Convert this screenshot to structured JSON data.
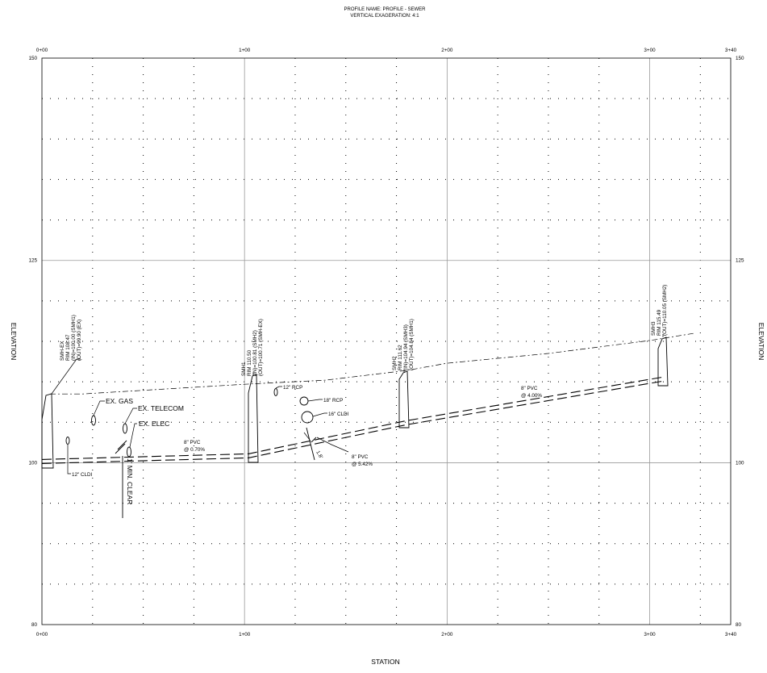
{
  "header": {
    "profile_name": "PROFILE NAME: PROFILE - SEWER",
    "vertical_exaggeration": "VERTICAL EXAGERATION: 4:1"
  },
  "axes": {
    "xlabel": "STATION",
    "ylabel": "ELEVATION",
    "x_ticks": [
      "0+00",
      "1+00",
      "2+00",
      "3+00",
      "3+40"
    ],
    "x_tick_values": [
      0,
      100,
      200,
      300,
      340
    ],
    "y_ticks": [
      "150",
      "125",
      "100",
      "80"
    ],
    "y_tick_values": [
      150,
      125,
      100,
      80
    ],
    "xlim": [
      0,
      340
    ],
    "ylim": [
      80,
      150
    ]
  },
  "chart_data": {
    "type": "line",
    "title": "PROFILE NAME: PROFILE - SEWER",
    "xlabel": "STATION",
    "ylabel": "ELEVATION",
    "xlim": [
      0,
      340
    ],
    "ylim": [
      80,
      150
    ],
    "grid": true,
    "series": [
      {
        "x": [
          4,
          20,
          100,
          140,
          180,
          200,
          250,
          300,
          322
        ],
        "y": [
          108.5,
          108.5,
          109.7,
          110.2,
          111.4,
          112.3,
          113.5,
          115.1,
          116.0
        ]
      },
      {
        "x": [
          0,
          102,
          180,
          307
        ],
        "y": [
          100.4,
          101.1,
          105.2,
          110.6
        ]
      },
      {
        "x": [
          0,
          102,
          180,
          307
        ],
        "y": [
          99.9,
          100.6,
          104.7,
          110.1
        ]
      }
    ]
  },
  "manholes": [
    {
      "name": "SMH-EX",
      "label_lines": [
        "SMH-EX",
        "RIM 108.47",
        "(IN)=100.00 (SMH1)",
        "(OUT)=99.90 (EX)"
      ]
    },
    {
      "name": "SMH1",
      "label_lines": [
        "SMH1",
        "RIM 110.50",
        "(IN)=100.81 (SMH2)",
        "(OUT)=100.71 (SMH-EX)"
      ]
    },
    {
      "name": "SMH2",
      "label_lines": [
        "SMH2",
        "RIM 111.62",
        "(IN)=104.94 (SMH3)",
        "(OUT)=104.84 (SMH1)"
      ]
    },
    {
      "name": "SMH3",
      "label_lines": [
        "SMH3",
        "RIM 115.49",
        "(OUT)=110.05 (SMH2)"
      ]
    }
  ],
  "pipe_labels": [
    {
      "size": "8\" PVC",
      "slope": "@ 0.70%"
    },
    {
      "size": "8\" PVC",
      "slope": "@ 5.42%"
    },
    {
      "size": "8\" PVC",
      "slope": "@ 4.00%"
    }
  ],
  "utilities": {
    "gas": "EX. GAS",
    "telecom": "EX. TELECOM",
    "elec": "EX. ELEC",
    "cldi12": "12\" CLDI",
    "rcp12": "12\" RCP",
    "rcp18": "18\" RCP",
    "cldi16": "16\" CLDI",
    "clear_note": "1' MIN. CLEAR",
    "clear_value": "1.8'"
  }
}
